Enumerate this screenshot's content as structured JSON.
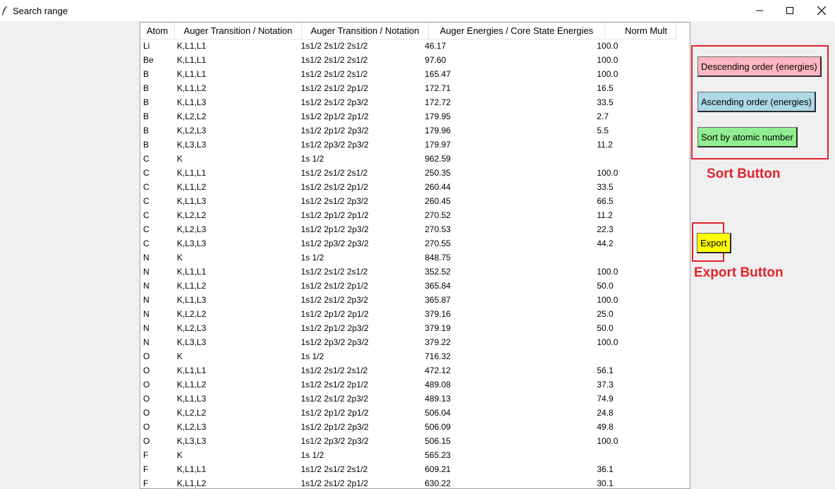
{
  "window": {
    "title": "Search range",
    "app_icon": "feather-icon",
    "controls": [
      "minimize-icon",
      "maximize-icon",
      "close-icon"
    ]
  },
  "table": {
    "columns": [
      "Atom",
      "Auger Transition / Notation",
      "Auger Transition / Notation",
      "Auger Energies / Core State Energies",
      "Norm Mult"
    ],
    "rows": [
      [
        "Li",
        "K,L1,L1",
        "1s1/2 2s1/2 2s1/2",
        "46.17",
        "100.0"
      ],
      [
        "Be",
        "K,L1,L1",
        "1s1/2 2s1/2 2s1/2",
        "97.60",
        "100.0"
      ],
      [
        "B",
        "K,L1,L1",
        "1s1/2 2s1/2 2s1/2",
        "165.47",
        "100.0"
      ],
      [
        "B",
        "K,L1,L2",
        "1s1/2 2s1/2 2p1/2",
        "172.71",
        "16.5"
      ],
      [
        "B",
        "K,L1,L3",
        "1s1/2 2s1/2 2p3/2",
        "172.72",
        "33.5"
      ],
      [
        "B",
        "K,L2,L2",
        "1s1/2 2p1/2 2p1/2",
        "179.95",
        "2.7"
      ],
      [
        "B",
        "K,L2,L3",
        "1s1/2 2p1/2 2p3/2",
        "179.96",
        "5.5"
      ],
      [
        "B",
        "K,L3,L3",
        "1s1/2 2p3/2 2p3/2",
        "179.97",
        "11.2"
      ],
      [
        "C",
        "K",
        "1s 1/2",
        "962.59",
        ""
      ],
      [
        "C",
        "K,L1,L1",
        "1s1/2 2s1/2 2s1/2",
        "250.35",
        "100.0"
      ],
      [
        "C",
        "K,L1,L2",
        "1s1/2 2s1/2 2p1/2",
        "260.44",
        "33.5"
      ],
      [
        "C",
        "K,L1,L3",
        "1s1/2 2s1/2 2p3/2",
        "260.45",
        "66.5"
      ],
      [
        "C",
        "K,L2,L2",
        "1s1/2 2p1/2 2p1/2",
        "270.52",
        "11.2"
      ],
      [
        "C",
        "K,L2,L3",
        "1s1/2 2p1/2 2p3/2",
        "270.53",
        "22.3"
      ],
      [
        "C",
        "K,L3,L3",
        "1s1/2 2p3/2 2p3/2",
        "270.55",
        "44.2"
      ],
      [
        "N",
        "K",
        "1s 1/2",
        "848.75",
        ""
      ],
      [
        "N",
        "K,L1,L1",
        "1s1/2 2s1/2 2s1/2",
        "352.52",
        "100.0"
      ],
      [
        "N",
        "K,L1,L2",
        "1s1/2 2s1/2 2p1/2",
        "365.84",
        "50.0"
      ],
      [
        "N",
        "K,L1,L3",
        "1s1/2 2s1/2 2p3/2",
        "365.87",
        "100.0"
      ],
      [
        "N",
        "K,L2,L2",
        "1s1/2 2p1/2 2p1/2",
        "379.16",
        "25.0"
      ],
      [
        "N",
        "K,L2,L3",
        "1s1/2 2p1/2 2p3/2",
        "379.19",
        "50.0"
      ],
      [
        "N",
        "K,L3,L3",
        "1s1/2 2p3/2 2p3/2",
        "379.22",
        "100.0"
      ],
      [
        "O",
        "K",
        "1s 1/2",
        "716.32",
        ""
      ],
      [
        "O",
        "K,L1,L1",
        "1s1/2 2s1/2 2s1/2",
        "472.12",
        "56.1"
      ],
      [
        "O",
        "K,L1,L2",
        "1s1/2 2s1/2 2p1/2",
        "489.08",
        "37.3"
      ],
      [
        "O",
        "K,L1,L3",
        "1s1/2 2s1/2 2p3/2",
        "489.13",
        "74.9"
      ],
      [
        "O",
        "K,L2,L2",
        "1s1/2 2p1/2 2p1/2",
        "506.04",
        "24.8"
      ],
      [
        "O",
        "K,L2,L3",
        "1s1/2 2p1/2 2p3/2",
        "506.09",
        "49.8"
      ],
      [
        "O",
        "K,L3,L3",
        "1s1/2 2p3/2 2p3/2",
        "506.15",
        "100.0"
      ],
      [
        "F",
        "K",
        "1s 1/2",
        "565.23",
        ""
      ],
      [
        "F",
        "K,L1,L1",
        "1s1/2 2s1/2 2s1/2",
        "609.21",
        "36.1"
      ],
      [
        "F",
        "K,L1,L2",
        "1s1/2 2s1/2 2p1/2",
        "630.22",
        "30.1"
      ]
    ]
  },
  "scrollbar": {
    "up_icon": "chevron-up-icon",
    "down_icon": "chevron-down-icon"
  },
  "sort_panel": {
    "descending_label": "Descending order (energies)",
    "ascending_label": "Ascending order (energies)",
    "atomic_label": "Sort by atomic number",
    "annotation": "Sort Button"
  },
  "export_panel": {
    "export_label": "Export",
    "annotation": "Export Button"
  },
  "colors": {
    "descending_bg": "#ffb6c1",
    "ascending_bg": "#add8e6",
    "atomic_bg": "#90ee90",
    "export_bg": "#ffff00",
    "annotation_red": "#e0232b"
  }
}
